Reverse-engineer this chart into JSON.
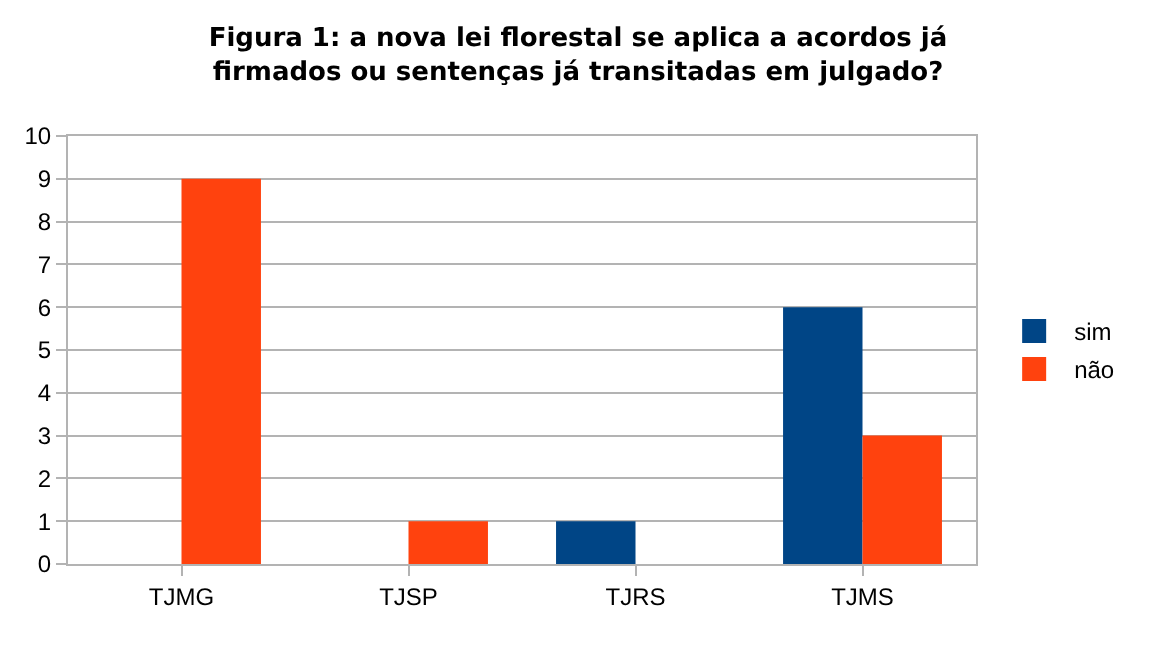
{
  "chart_data": {
    "type": "bar",
    "title": "Figura 1: a nova lei florestal se aplica a acordos já firmados ou sentenças já transitadas em julgado?",
    "categories": [
      "TJMG",
      "TJSP",
      "TJRS",
      "TJMS"
    ],
    "series": [
      {
        "name": "sim",
        "color": "#004586",
        "values": [
          0,
          0,
          1,
          6
        ]
      },
      {
        "name": "não",
        "color": "#ff420e",
        "values": [
          9,
          1,
          0,
          3
        ]
      }
    ],
    "ylim": [
      0,
      10
    ],
    "yticks": [
      0,
      1,
      2,
      3,
      4,
      5,
      6,
      7,
      8,
      9,
      10
    ],
    "grid": "y",
    "legend": "right"
  }
}
